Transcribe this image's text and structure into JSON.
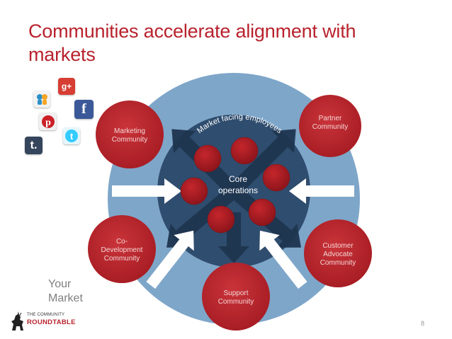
{
  "slide": {
    "title": "Communities accelerate alignment with markets",
    "page_number": "8"
  },
  "diagram": {
    "arc_label": "Market facing employees",
    "core_label_line1": "Core",
    "core_label_line2": "operations",
    "market_line1": "Your",
    "market_line2": "Market",
    "communities": [
      {
        "lines": [
          "Marketing",
          "Community"
        ]
      },
      {
        "lines": [
          "Partner",
          "Community"
        ]
      },
      {
        "lines": [
          "Co-",
          "Development",
          "Community"
        ]
      },
      {
        "lines": [
          "Customer",
          "Advocate",
          "Community"
        ]
      },
      {
        "lines": [
          "Support",
          "Community"
        ]
      }
    ]
  },
  "social_icons": [
    {
      "name": "slideshare-icon",
      "color": "#2b8fc7"
    },
    {
      "name": "google-plus-icon",
      "color": "#d73d32"
    },
    {
      "name": "facebook-icon",
      "color": "#3b5998"
    },
    {
      "name": "pinterest-icon",
      "color": "#cb2027"
    },
    {
      "name": "twitter-icon",
      "color": "#33ccff"
    },
    {
      "name": "tumblr-icon",
      "color": "#35465c"
    }
  ],
  "logo": {
    "line1": "THE COMMUNITY",
    "line2": "ROUNDTABLE"
  },
  "colors": {
    "title": "#b8222d",
    "outer_ring": "#7ea6c9",
    "core_circle": "#2f4d6e",
    "community_red": "#c1272d",
    "arrow_dark": "#1f3550"
  }
}
